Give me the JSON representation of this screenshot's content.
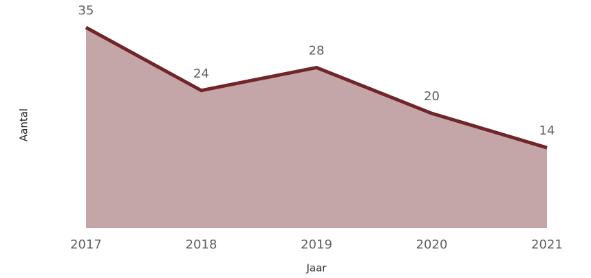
{
  "chart_data": {
    "type": "area",
    "x_label": "Jaar",
    "y_label": "Aantal",
    "categories": [
      "2017",
      "2018",
      "2019",
      "2020",
      "2021"
    ],
    "values": [
      35,
      24,
      28,
      20,
      14
    ],
    "color": "#722529",
    "fill_color": "#c4a6a8"
  }
}
